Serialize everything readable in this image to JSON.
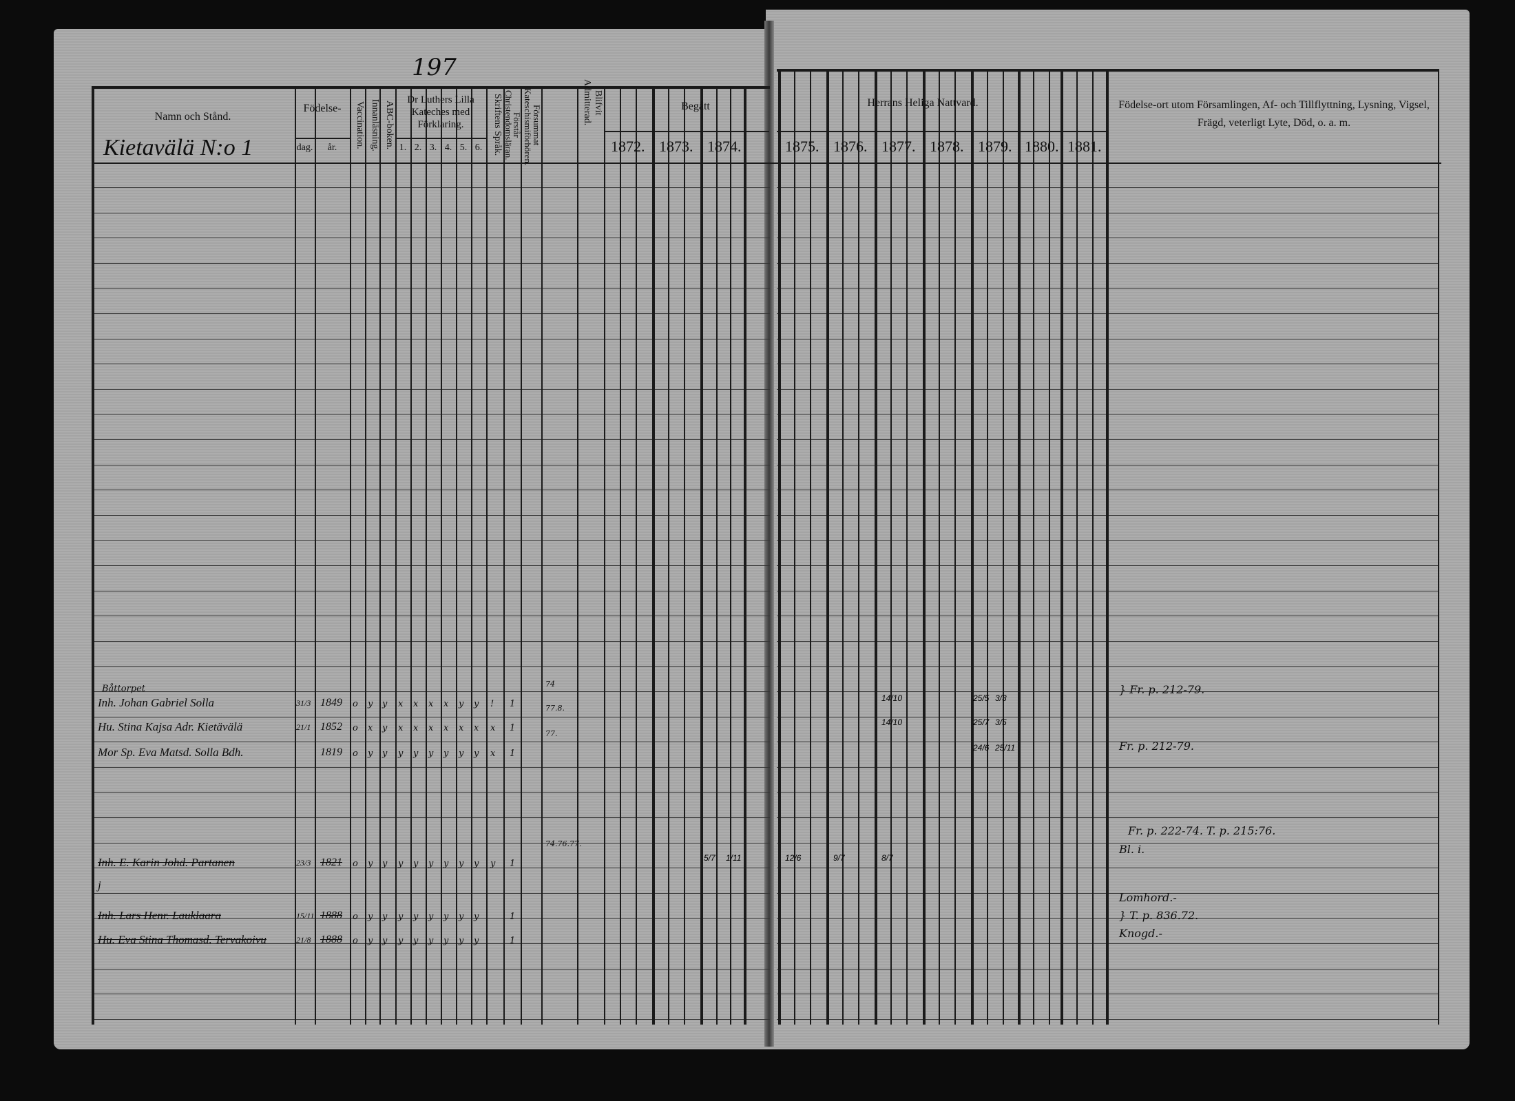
{
  "page_number": "197",
  "left_header": {
    "name_col": "Namn och Stånd.",
    "birth": "Födelse-",
    "birth_day": "dag.",
    "birth_year": "år.",
    "vaccination": "Vaccination.",
    "reading": "Innanläsning.",
    "abc": "ABC-boken.",
    "luther": "Dr Luthers Lilla Kateches med Förklaring.",
    "luther_parts": [
      "1.",
      "2.",
      "3.",
      "4.",
      "5.",
      "6."
    ],
    "scripture": "Skriftens Språk.",
    "understands": "Förstår Christendomsläran.",
    "missed": "Försummat Kateschismiförhören.",
    "admitted": "Blifvit Admitterad.",
    "begatt": "Begått",
    "years": [
      "1872.",
      "1873.",
      "1874."
    ]
  },
  "right_header": {
    "communion": "Herrans Heliga Nattvard.",
    "years": [
      "1875.",
      "1876.",
      "1877.",
      "1878.",
      "1879.",
      "1880.",
      "1881."
    ],
    "notes_col": "Födelse-ort utom Församlingen, Af- och Tillflyttning, Lysning, Vigsel, Frägd, veterligt Lyte, Död, o. a. m."
  },
  "village": "Kietavälä N:o 1",
  "entries": [
    {
      "prefix_note": "Båttorpet",
      "name": "Inh. Johan Gabriel Solla",
      "day": "31/3",
      "year": "1849",
      "marks": [
        "o",
        "y",
        "y",
        "x",
        "x",
        "x",
        "x",
        "y",
        "y",
        "!"
      ],
      "understands": "1",
      "missed": "74",
      "struck": false
    },
    {
      "name": "Hu. Stina Kajsa Adr. Kietävälä",
      "day": "21/1",
      "year": "1852",
      "marks": [
        "o",
        "x",
        "y",
        "x",
        "x",
        "x",
        "x",
        "x",
        "x",
        "x"
      ],
      "understands": "1",
      "missed": "77.8.",
      "struck": false
    },
    {
      "name": "Mor Sp. Eva Matsd. Solla Bdh.",
      "day": "",
      "year": "1819",
      "marks": [
        "o",
        "y",
        "y",
        "y",
        "y",
        "y",
        "y",
        "y",
        "y",
        "x"
      ],
      "understands": "1",
      "missed": "77.",
      "struck": false
    },
    {
      "name": "Inh. E. Karin Johd. Partanen",
      "day": "23/3",
      "year": "1821",
      "marks": [
        "o",
        "y",
        "y",
        "y",
        "y",
        "y",
        "y",
        "y",
        "y",
        "y"
      ],
      "understands": "1",
      "missed": "74.76.77.",
      "struck": true
    },
    {
      "name": "j",
      "day": "",
      "year": "",
      "marks": [],
      "understands": "",
      "missed": "",
      "struck": false
    },
    {
      "name": "Inh. Lars Henr. Lauklaara",
      "day": "15/11",
      "year": "1888",
      "marks": [
        "o",
        "y",
        "y",
        "y",
        "y",
        "y",
        "y",
        "y",
        "y"
      ],
      "understands": "1",
      "missed": "",
      "struck": true
    },
    {
      "name": "Hu. Eva Stina Thomasd. Tervakoivu",
      "day": "21/8",
      "year": "1888",
      "marks": [
        "o",
        "y",
        "y",
        "y",
        "y",
        "y",
        "y",
        "y",
        "y"
      ],
      "understands": "1",
      "missed": "",
      "struck": true
    }
  ],
  "communion_marks": [
    {
      "row": 0,
      "year": "1877",
      "values": [
        "14/10"
      ]
    },
    {
      "row": 1,
      "year": "1877",
      "values": [
        "14/10"
      ]
    },
    {
      "row": 0,
      "year": "1879",
      "values": [
        "25/5",
        "3/3"
      ]
    },
    {
      "row": 1,
      "year": "1879",
      "values": [
        "25/7",
        "3/5"
      ]
    },
    {
      "row": 2,
      "year": "1879",
      "values": [
        "24/6",
        "25/11"
      ]
    },
    {
      "row": 3,
      "year": "1874",
      "values": [
        "5/7",
        "1/11"
      ]
    },
    {
      "row": 3,
      "year": "1875",
      "values": [
        "12/6"
      ]
    },
    {
      "row": 3,
      "year": "1876",
      "values": [
        "9/7"
      ]
    },
    {
      "row": 3,
      "year": "1877",
      "values": [
        "8/7"
      ]
    }
  ],
  "notes": [
    "} Fr. p. 212-79.",
    "Fr. p. 212-79.",
    "Fr. p. 222-74. T. p. 215:76.",
    "Bl. i.",
    "Lomhord.-",
    "} T. p. 836.72.",
    "Knogd.-"
  ]
}
